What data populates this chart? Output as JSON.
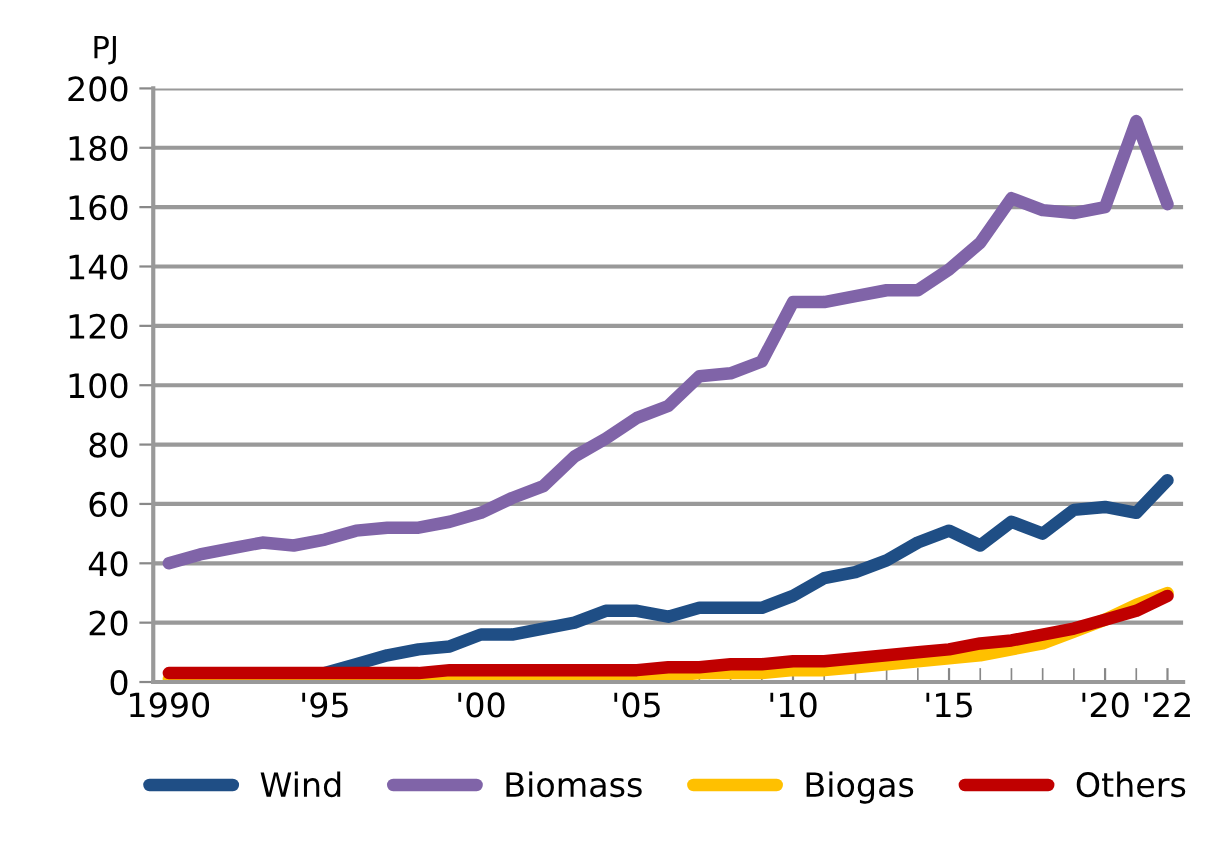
{
  "chart_data": {
    "type": "line",
    "ylabel": "PJ",
    "x": [
      1990,
      1991,
      1992,
      1993,
      1994,
      1995,
      1996,
      1997,
      1998,
      1999,
      2000,
      2001,
      2002,
      2003,
      2004,
      2005,
      2006,
      2007,
      2008,
      2009,
      2010,
      2011,
      2012,
      2013,
      2014,
      2015,
      2016,
      2017,
      2018,
      2019,
      2020,
      2021,
      2022
    ],
    "series": [
      {
        "name": "Wind",
        "color": "#1f4e85",
        "values": [
          null,
          null,
          null,
          null,
          null,
          3,
          6,
          9,
          11,
          12,
          16,
          16,
          18,
          20,
          24,
          24,
          22,
          25,
          25,
          25,
          29,
          35,
          37,
          41,
          47,
          51,
          46,
          54,
          50,
          58,
          59,
          57,
          68
        ]
      },
      {
        "name": "Biomass",
        "color": "#8064a8",
        "values": [
          40,
          43,
          45,
          47,
          46,
          48,
          51,
          52,
          52,
          54,
          57,
          62,
          66,
          76,
          82,
          89,
          93,
          103,
          104,
          108,
          128,
          128,
          130,
          132,
          132,
          139,
          148,
          163,
          159,
          158,
          160,
          189,
          161
        ]
      },
      {
        "name": "Biogas",
        "color": "#ffc000",
        "values": [
          1,
          1,
          1,
          1,
          1,
          1,
          1,
          1,
          1,
          1,
          1,
          2,
          2,
          2,
          2,
          2,
          2,
          3,
          3,
          3,
          4,
          4,
          5,
          6,
          7,
          8,
          9,
          11,
          13,
          17,
          21,
          26,
          30
        ]
      },
      {
        "name": "Others",
        "color": "#c00000",
        "values": [
          3,
          3,
          3,
          3,
          3,
          3,
          3,
          3,
          3,
          4,
          4,
          4,
          4,
          4,
          4,
          4,
          5,
          5,
          6,
          6,
          7,
          7,
          8,
          9,
          10,
          11,
          13,
          14,
          16,
          18,
          21,
          24,
          29
        ]
      }
    ],
    "xlim": [
      1989.5,
      2022.5
    ],
    "ylim": [
      0,
      200
    ],
    "yticks": [
      0,
      20,
      40,
      60,
      80,
      100,
      120,
      140,
      160,
      180,
      200
    ],
    "xticks": [
      1990,
      {
        "value": 1995,
        "label": "'95"
      },
      {
        "value": 2000,
        "label": "'00"
      },
      {
        "value": 2005,
        "label": "'05"
      },
      {
        "value": 2010,
        "label": "'10"
      },
      {
        "value": 2015,
        "label": "'15"
      },
      {
        "value": 2020,
        "label": "'20"
      },
      {
        "value": 2022,
        "label": "'22"
      }
    ],
    "grid": "y",
    "legend": "bottom",
    "marker": "none",
    "line_style": "solid"
  }
}
